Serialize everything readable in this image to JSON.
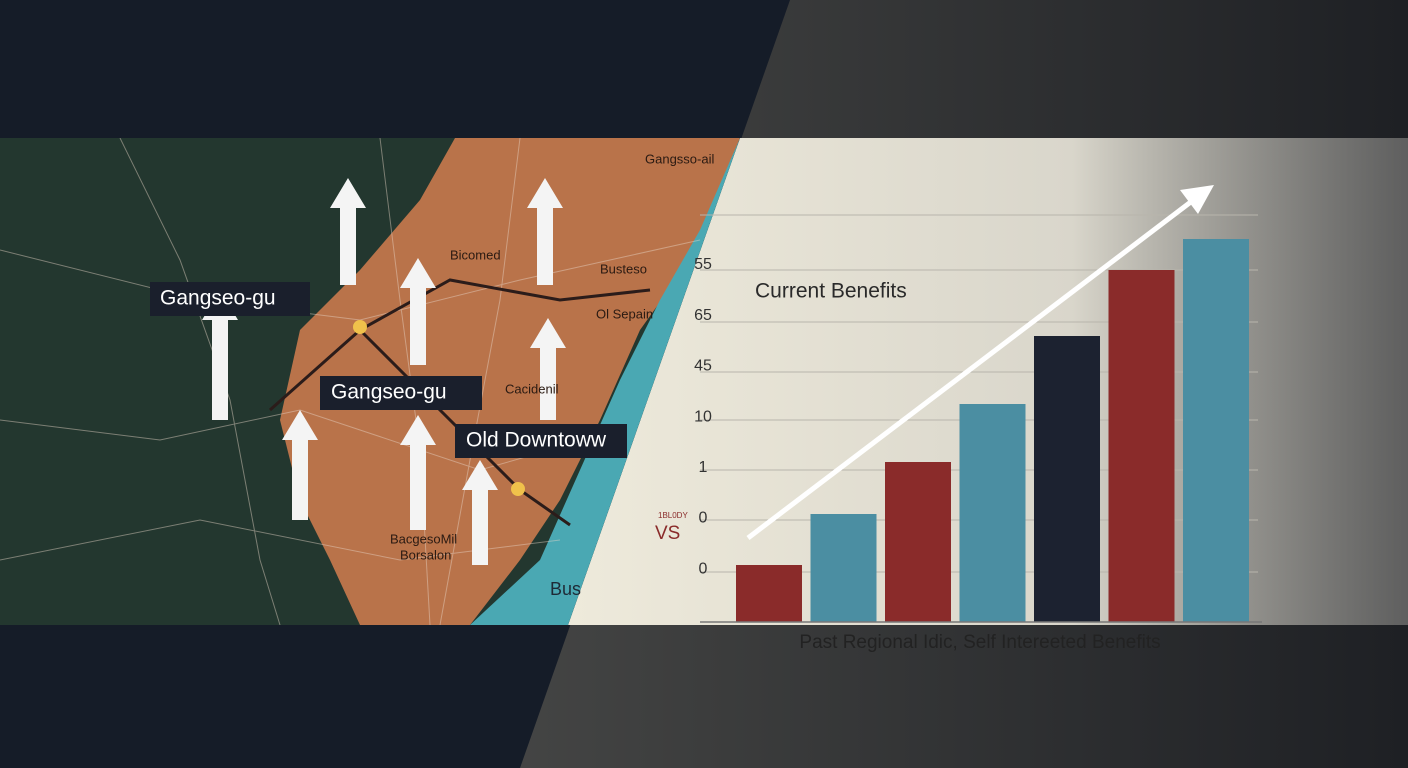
{
  "map": {
    "labels": [
      "Gangseo-gu",
      "Gangseo-gu",
      "Old Downtoww"
    ],
    "place_names": [
      "Gangsso-ail",
      "Bicomed",
      "Busteso",
      "Ol Sepain",
      "Cacidenil",
      "BacgesoMil",
      "Borsalon",
      "Bus"
    ]
  },
  "chart": {
    "title": "Current Benefits",
    "axis_labels": [
      "55",
      "65",
      "45",
      "10",
      "1",
      "0",
      "0"
    ],
    "small_label": "1BL0DY",
    "vs_label": "VS",
    "caption": "Past Regional Idic, Self Intereeted Benefits",
    "values": [
      57,
      108,
      160,
      218,
      286,
      352,
      383
    ],
    "colors": [
      "#8a2b2a",
      "#4b8ea2",
      "#8a2b2a",
      "#4b8ea2",
      "#1c2230",
      "#8a2b2a",
      "#4b8ea2"
    ],
    "ylim": [
      0,
      400
    ]
  }
}
